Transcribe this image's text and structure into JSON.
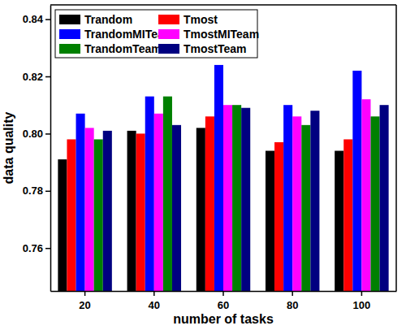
{
  "chart_data": {
    "type": "bar",
    "x_label": "number of tasks",
    "y_label": "data quality",
    "categories": [
      20,
      40,
      60,
      80,
      100
    ],
    "series": [
      {
        "name": "Trandom",
        "color": "#000000",
        "values": [
          0.791,
          0.801,
          0.802,
          0.794,
          0.794
        ]
      },
      {
        "name": "Tmost",
        "color": "#ff0000",
        "values": [
          0.798,
          0.8,
          0.806,
          0.797,
          0.798
        ]
      },
      {
        "name": "TrandomMITeam",
        "color": "#0000ff",
        "values": [
          0.807,
          0.813,
          0.824,
          0.81,
          0.822
        ]
      },
      {
        "name": "TmostMITeam",
        "color": "#ff00ff",
        "values": [
          0.802,
          0.807,
          0.81,
          0.806,
          0.812
        ]
      },
      {
        "name": "TrandomTeam",
        "color": "#008000",
        "values": [
          0.798,
          0.813,
          0.81,
          0.803,
          0.806
        ]
      },
      {
        "name": "TmostTeam",
        "color": "#000080",
        "values": [
          0.801,
          0.803,
          0.809,
          0.808,
          0.81
        ]
      }
    ],
    "ylim": [
      0.745,
      0.845
    ],
    "yticks": [
      0.76,
      0.78,
      {
        "value": 0.8,
        "label": "0.80"
      },
      0.82,
      0.84
    ],
    "grid": false,
    "legend": "upper left"
  }
}
